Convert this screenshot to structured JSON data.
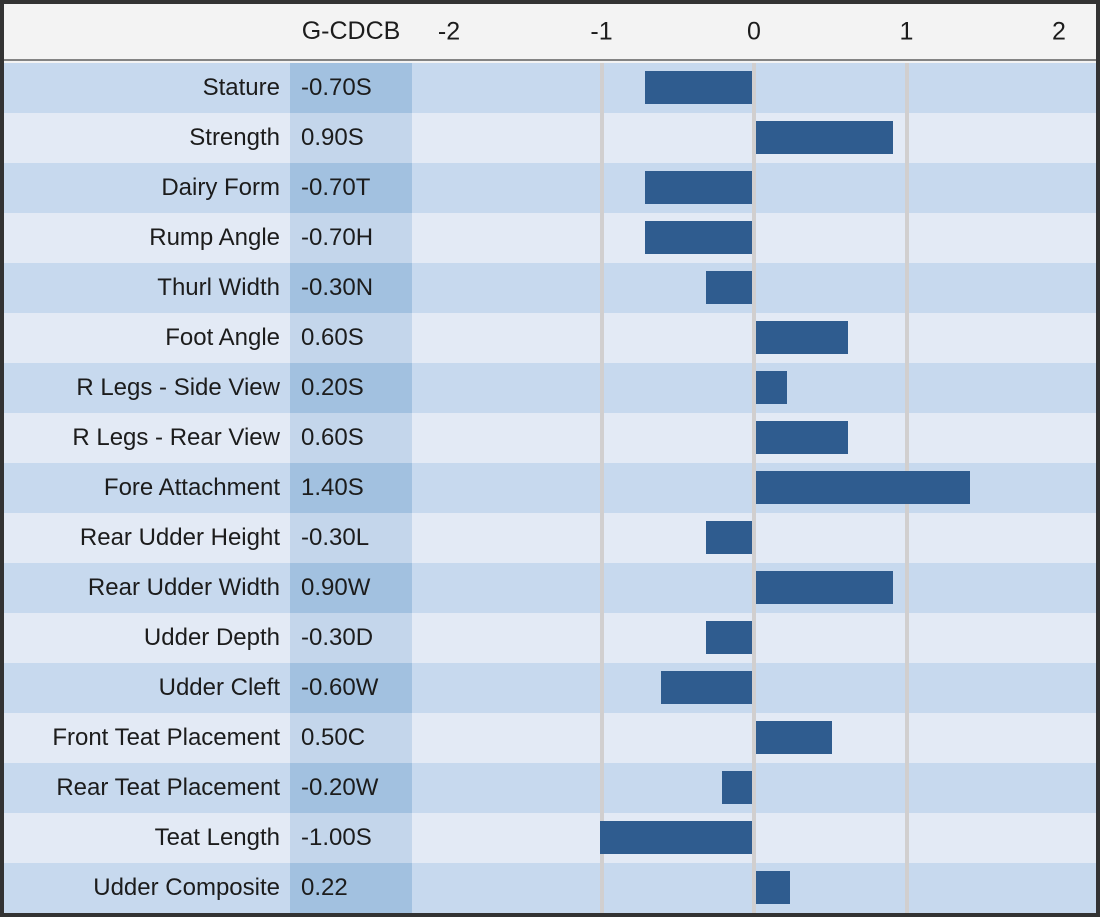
{
  "header": {
    "value_column_label": "G-CDCB",
    "axis_ticks": [
      "-2",
      "-1",
      "0",
      "1",
      "2"
    ]
  },
  "colors": {
    "bar": "#2F5C8F",
    "row_odd_bg": "#C7D9EE",
    "row_even_bg": "#E3EAF5",
    "value_cell_odd_bg": "#A2C1E0",
    "value_cell_even_bg": "#C4D6EB",
    "header_bg": "#F3F3F3",
    "gridline": "#D1CFCF",
    "outer_border": "#333333"
  },
  "chart_data": {
    "type": "bar",
    "orientation": "horizontal",
    "title": "",
    "value_column_header": "G-CDCB",
    "xlim": [
      -2.25,
      2.25
    ],
    "axis_tick_values": [
      -2,
      -1,
      0,
      1,
      2
    ],
    "gridlines_at": [
      -1,
      0,
      1
    ],
    "legend": "none",
    "categories": [
      "Stature",
      "Strength",
      "Dairy Form",
      "Rump Angle",
      "Thurl Width",
      "Foot Angle",
      "R Legs - Side View",
      "R Legs - Rear View",
      "Fore Attachment",
      "Rear Udder Height",
      "Rear Udder Width",
      "Udder Depth",
      "Udder Cleft",
      "Front Teat Placement",
      "Rear Teat Placement",
      "Teat Length",
      "Udder Composite"
    ],
    "value_labels": [
      "-0.70S",
      "0.90S",
      "-0.70T",
      "-0.70H",
      "-0.30N",
      "0.60S",
      "0.20S",
      "0.60S",
      "1.40S",
      "-0.30L",
      "0.90W",
      "-0.30D",
      "-0.60W",
      "0.50C",
      "-0.20W",
      "-1.00S",
      "0.22"
    ],
    "values": [
      -0.7,
      0.9,
      -0.7,
      -0.7,
      -0.3,
      0.6,
      0.2,
      0.6,
      1.4,
      -0.3,
      0.9,
      -0.3,
      -0.6,
      0.5,
      -0.2,
      -1.0,
      0.22
    ],
    "rows": [
      {
        "label": "Stature",
        "value_text": "-0.70S",
        "value": -0.7
      },
      {
        "label": "Strength",
        "value_text": "0.90S",
        "value": 0.9
      },
      {
        "label": "Dairy Form",
        "value_text": "-0.70T",
        "value": -0.7
      },
      {
        "label": "Rump Angle",
        "value_text": "-0.70H",
        "value": -0.7
      },
      {
        "label": "Thurl Width",
        "value_text": "-0.30N",
        "value": -0.3
      },
      {
        "label": "Foot Angle",
        "value_text": "0.60S",
        "value": 0.6
      },
      {
        "label": "R Legs - Side View",
        "value_text": "0.20S",
        "value": 0.2
      },
      {
        "label": "R Legs - Rear View",
        "value_text": "0.60S",
        "value": 0.6
      },
      {
        "label": "Fore Attachment",
        "value_text": "1.40S",
        "value": 1.4
      },
      {
        "label": "Rear Udder Height",
        "value_text": "-0.30L",
        "value": -0.3
      },
      {
        "label": "Rear Udder Width",
        "value_text": "0.90W",
        "value": 0.9
      },
      {
        "label": "Udder Depth",
        "value_text": "-0.30D",
        "value": -0.3
      },
      {
        "label": "Udder Cleft",
        "value_text": "-0.60W",
        "value": -0.6
      },
      {
        "label": "Front Teat Placement",
        "value_text": "0.50C",
        "value": 0.5
      },
      {
        "label": "Rear Teat Placement",
        "value_text": "-0.20W",
        "value": -0.2
      },
      {
        "label": "Teat Length",
        "value_text": "-1.00S",
        "value": -1.0
      },
      {
        "label": "Udder Composite",
        "value_text": "0.22",
        "value": 0.22
      }
    ]
  }
}
